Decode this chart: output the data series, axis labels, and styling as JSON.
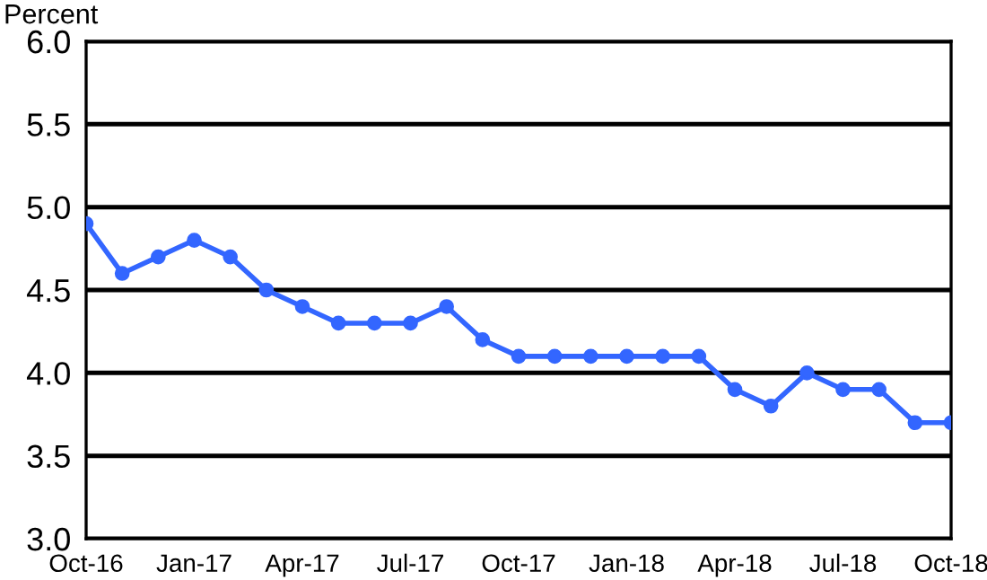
{
  "chart_data": {
    "type": "line",
    "ylabel": "Percent",
    "categories": [
      "Oct-16",
      null,
      null,
      "Jan-17",
      null,
      null,
      "Apr-17",
      null,
      null,
      "Jul-17",
      null,
      null,
      "Oct-17",
      null,
      null,
      "Jan-18",
      null,
      null,
      "Apr-18",
      null,
      null,
      "Jul-18",
      null,
      null,
      "Oct-18"
    ],
    "series": [
      {
        "color": "#3366ff",
        "values": [
          4.9,
          4.6,
          4.7,
          4.8,
          4.7,
          4.5,
          4.4,
          4.3,
          4.3,
          4.3,
          4.4,
          4.2,
          4.1,
          4.1,
          4.1,
          4.1,
          4.1,
          4.1,
          3.9,
          3.8,
          4.0,
          3.9,
          3.9,
          3.7,
          3.7
        ]
      }
    ],
    "ylim": [
      3.0,
      6.0
    ],
    "yticks": [
      {
        "value": 3.0,
        "label": "3.0"
      },
      {
        "value": 3.5,
        "label": "3.5"
      },
      {
        "value": 4.0,
        "label": "4.0"
      },
      {
        "value": 4.5,
        "label": "4.5"
      },
      {
        "value": 5.0,
        "label": "5.0"
      },
      {
        "value": 5.5,
        "label": "5.5"
      },
      {
        "value": 6.0,
        "label": "6.0"
      }
    ],
    "grid": "y",
    "marker": "circle",
    "line_style": "solid",
    "legend": false
  }
}
